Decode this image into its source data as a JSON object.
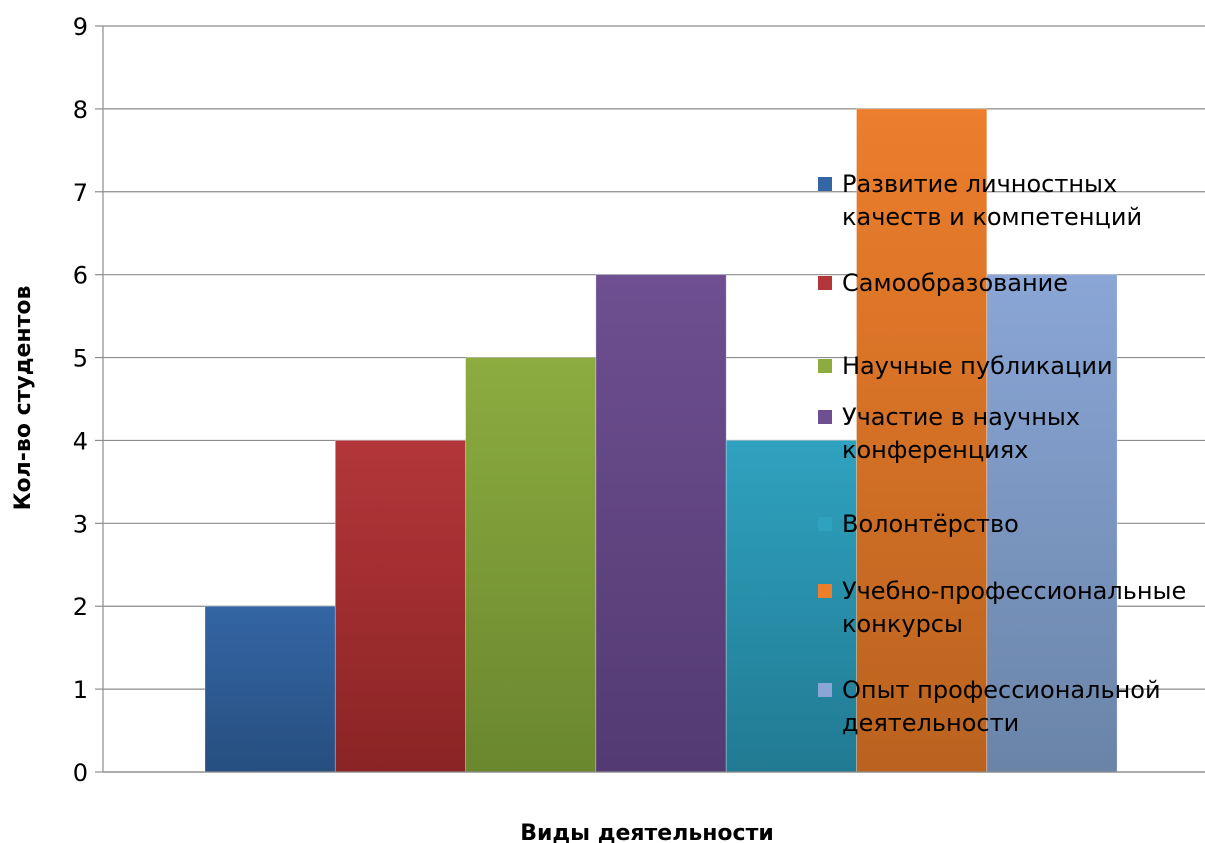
{
  "chart_data": {
    "type": "bar",
    "title": "",
    "xlabel": "Виды деятельности",
    "ylabel": "Кол-во студентов",
    "ylim": [
      0,
      9
    ],
    "yticks": [
      "0",
      "1",
      "2",
      "3",
      "4",
      "5",
      "6",
      "7",
      "8",
      "9"
    ],
    "grid": true,
    "legend_position": "right",
    "series": [
      {
        "name": "Развитие личностных качеств и компетенций",
        "legend_lines": [
          "Развитие личностных",
          "качеств и компетенций"
        ],
        "value": 2,
        "color": "#3465a4",
        "color_dark": "#264f80"
      },
      {
        "name": "Самообразование",
        "legend_lines": [
          "Самообразование"
        ],
        "value": 4,
        "color": "#b3363a",
        "color_dark": "#8a2424"
      },
      {
        "name": "Научные публикации",
        "legend_lines": [
          "Научные публикации"
        ],
        "value": 5,
        "color": "#8cac40",
        "color_dark": "#6a872e"
      },
      {
        "name": "Участие в научных конференциях",
        "legend_lines": [
          "Участие в научных",
          "конференциях"
        ],
        "value": 6,
        "color": "#6e4f91",
        "color_dark": "#533a72"
      },
      {
        "name": "Волонтёрство",
        "legend_lines": [
          "Волонтёрство"
        ],
        "value": 4,
        "color": "#2fa2c0",
        "color_dark": "#217a92"
      },
      {
        "name": "Учебно-профессиональные конкурсы",
        "legend_lines": [
          "Учебно-профессиональные",
          "конкурсы"
        ],
        "value": 8,
        "color": "#ec7e2c",
        "color_dark": "#b9621f"
      },
      {
        "name": "Опыт профессиональной деятельности",
        "legend_lines": [
          "Опыт профессиональной",
          "деятельности"
        ],
        "value": 6,
        "color": "#8aa6d6",
        "color_dark": "#6a84a8"
      }
    ]
  }
}
